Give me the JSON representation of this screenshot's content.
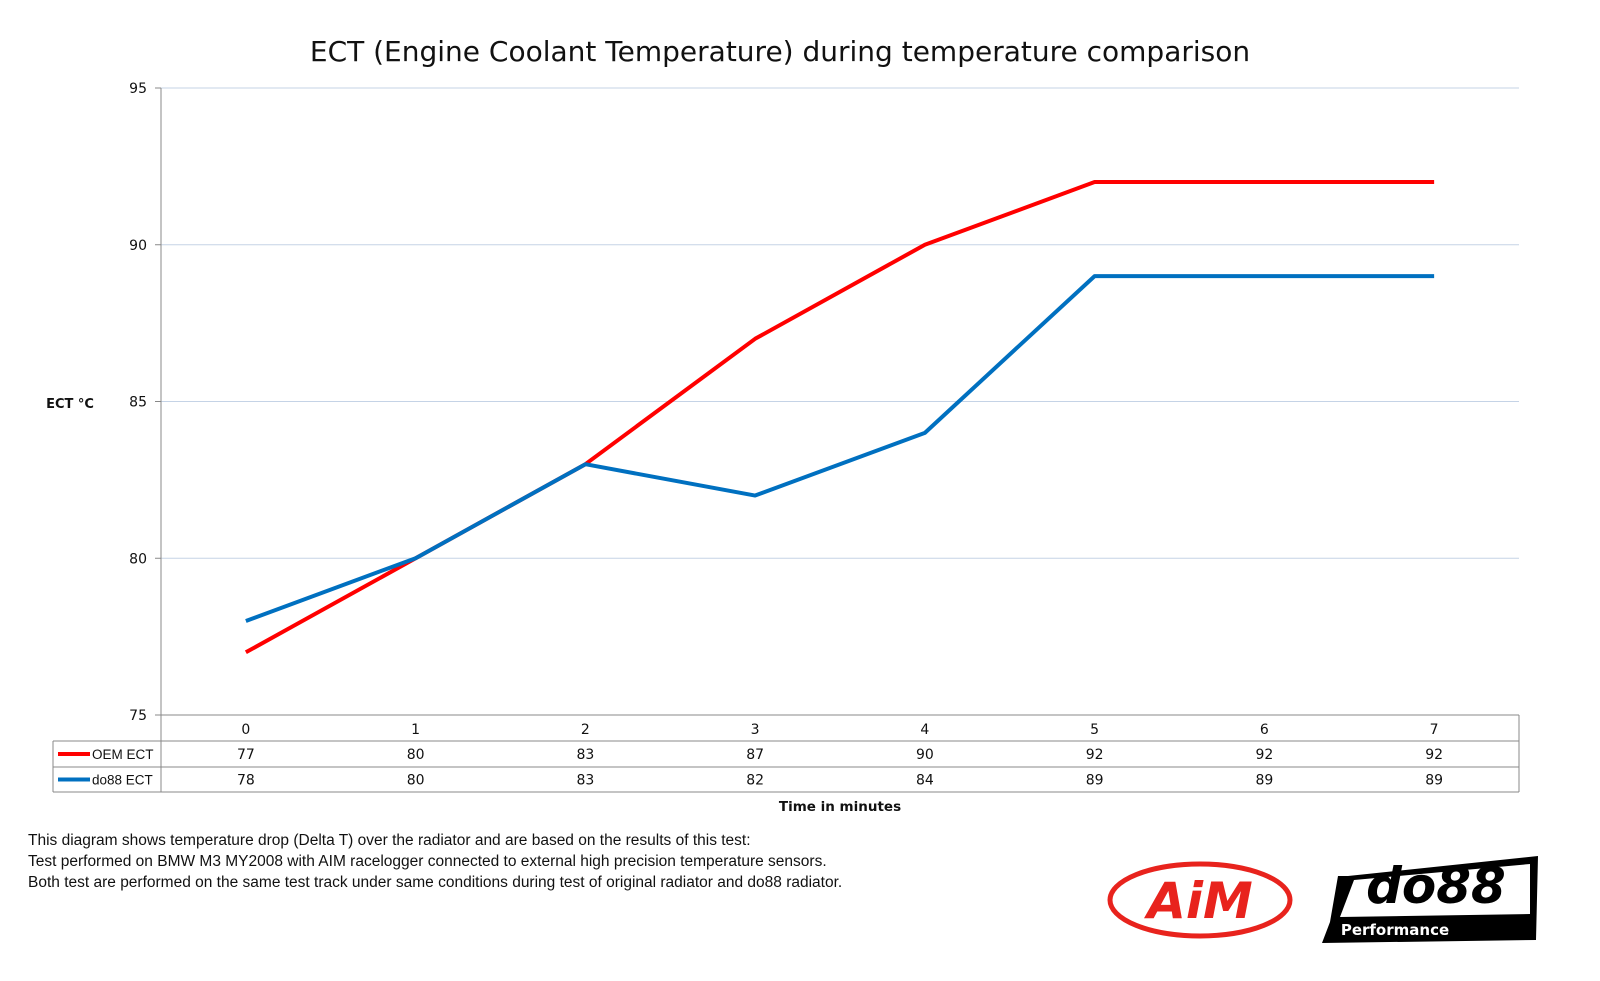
{
  "chart_data": {
    "type": "line",
    "title": "ECT (Engine Coolant Temperature) during temperature comparison",
    "xlabel": "Time in minutes",
    "ylabel": "ECT °C",
    "categories": [
      "0",
      "1",
      "2",
      "3",
      "4",
      "5",
      "6",
      "7"
    ],
    "ylim": [
      75,
      95
    ],
    "yticks": [
      75,
      80,
      85,
      90,
      95
    ],
    "grid": true,
    "legend": "data-table",
    "series": [
      {
        "name": "OEM ECT",
        "color": "#ff0000",
        "values": [
          77,
          80,
          83,
          87,
          90,
          92,
          92,
          92
        ]
      },
      {
        "name": "do88 ECT",
        "color": "#0070c0",
        "values": [
          78,
          80,
          83,
          82,
          84,
          89,
          89,
          89
        ]
      }
    ]
  },
  "notes": [
    "This diagram shows temperature drop (Delta T) over the radiator and are based on the results of this test:",
    "Test performed on BMW M3 MY2008 with AIM racelogger connected to external high precision temperature sensors.",
    "Both test are performed on the same test track under same conditions during test of original radiator and do88 radiator."
  ],
  "logos": {
    "aim": "AiM",
    "do88": "do88",
    "do88_sub": "Performance"
  }
}
